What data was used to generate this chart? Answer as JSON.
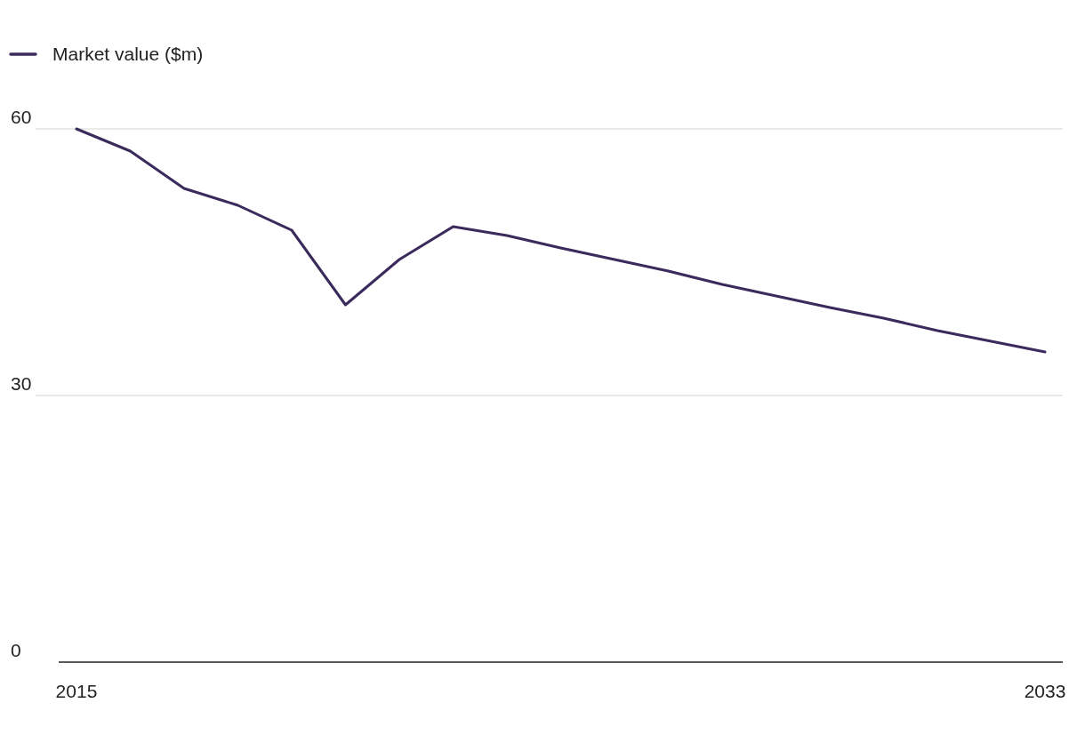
{
  "chart_data": {
    "type": "line",
    "x": [
      2015,
      2016,
      2017,
      2018,
      2019,
      2020,
      2021,
      2022,
      2023,
      2024,
      2025,
      2026,
      2027,
      2028,
      2029,
      2030,
      2031,
      2032,
      2033
    ],
    "series": [
      {
        "name": "Market value ($m)",
        "color": "#3b2a5c",
        "values": [
          60,
          57.5,
          53.3,
          51.4,
          48.6,
          40.2,
          45.3,
          49,
          48,
          46.6,
          45.3,
          44,
          42.5,
          41.2,
          39.9,
          38.7,
          37.3,
          36.1,
          34.9
        ]
      }
    ],
    "xlim": [
      2014.67,
      2033.33
    ],
    "xticks": [
      2015,
      2033
    ],
    "ylim": [
      0,
      60
    ],
    "yticks": [
      0,
      30,
      60
    ],
    "grid": "y",
    "legend": "top left",
    "marker": "none",
    "line_style": "solid"
  }
}
